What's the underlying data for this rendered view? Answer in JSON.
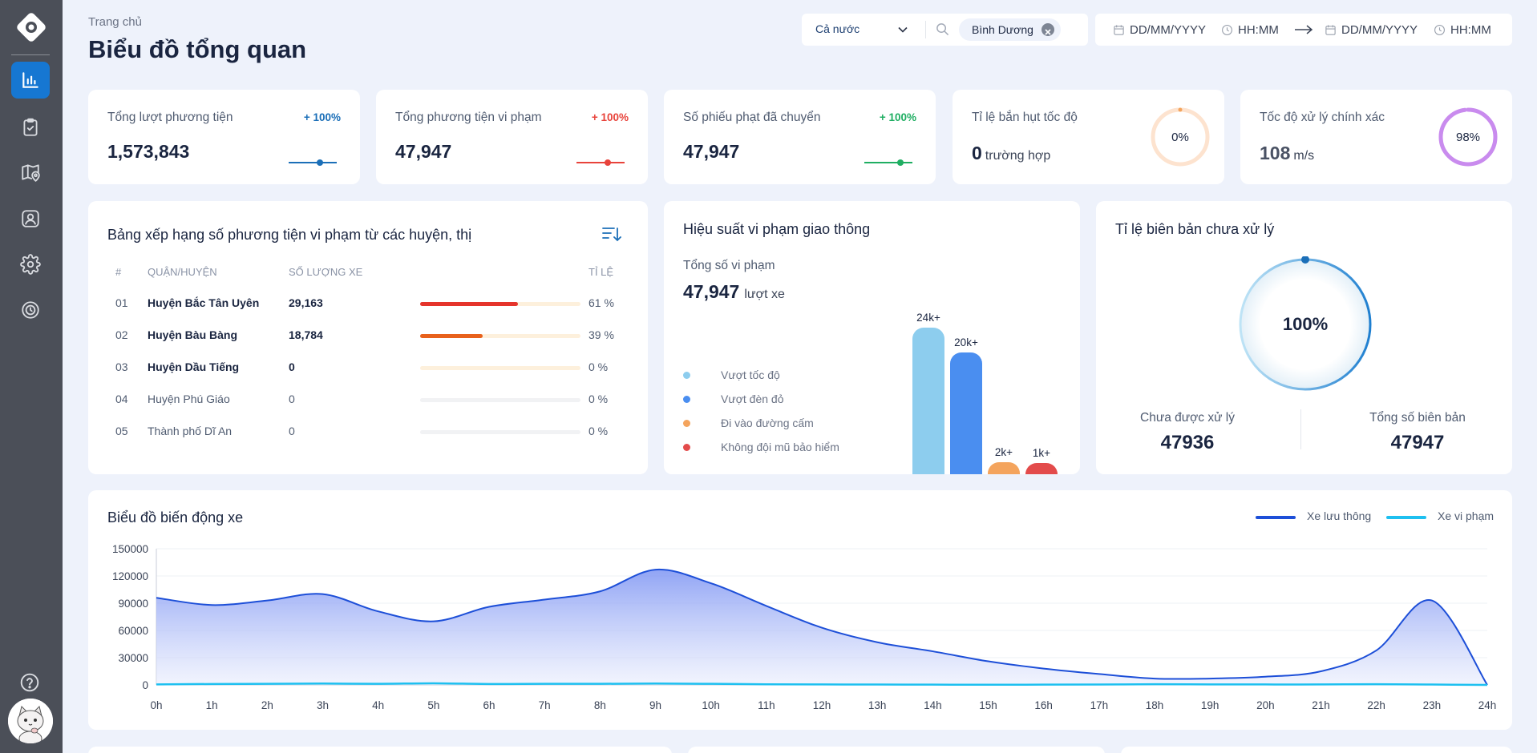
{
  "header": {
    "breadcrumb": "Trang chủ",
    "title": "Biểu đồ tổng quan",
    "region_select": "Cả nước",
    "selected_tag": "Bình Dương",
    "date_from": "DD/MM/YYYY",
    "time_from": "HH:MM",
    "date_to": "DD/MM/YYYY",
    "time_to": "HH:MM"
  },
  "sidebar": {
    "items": [
      {
        "icon": "bar-chart-icon",
        "active": true
      },
      {
        "icon": "clipboard-check-icon",
        "active": false
      },
      {
        "icon": "map-pin-icon",
        "active": false
      },
      {
        "icon": "user-group-icon",
        "active": false
      },
      {
        "icon": "gear-icon",
        "active": false
      },
      {
        "icon": "clock-history-icon",
        "active": false
      }
    ]
  },
  "stats": [
    {
      "label": "Tổng lượt phương tiện",
      "value": "1,573,843",
      "change": "+ 100%",
      "color": "#1b6fb8"
    },
    {
      "label": "Tổng phương tiện vi phạm",
      "value": "47,947",
      "change": "+ 100%",
      "color": "#e8433b"
    },
    {
      "label": "Số phiếu phạt đã chuyển",
      "value": "47,947",
      "change": "+ 100%",
      "color": "#1fae62"
    },
    {
      "label": "Tỉ lệ bắn hụt tốc độ",
      "value": "0",
      "unit": "trường hợp",
      "ring_text": "0%",
      "ring_color": "#fde3cf",
      "ring_fraction": 0
    },
    {
      "label": "Tốc độ xử lý chính xác",
      "value": "108",
      "unit": "m/s",
      "ring_text": "98%",
      "ring_color": "#c98bee",
      "ring_fraction": 0.98
    }
  ],
  "ranking": {
    "title": "Bảng xếp hạng số phương tiện vi phạm từ các huyện, thị",
    "headers": {
      "index": "#",
      "district": "QUẬN/HUYỆN",
      "count": "SỐ LƯỢNG XE",
      "ratio": "TỈ LỆ"
    },
    "rows": [
      {
        "index": "01",
        "district": "Huyện Bắc Tân Uyên",
        "count": "29,163",
        "ratio": "61 %",
        "fraction": 0.61,
        "color": "#e5342b",
        "bold": true
      },
      {
        "index": "02",
        "district": "Huyện Bàu Bàng",
        "count": "18,784",
        "ratio": "39 %",
        "fraction": 0.39,
        "color": "#e8611c",
        "bold": true
      },
      {
        "index": "03",
        "district": "Huyện Dầu Tiếng",
        "count": "0",
        "ratio": "0 %",
        "fraction": 0,
        "color": "#f2a64b",
        "bold": true
      },
      {
        "index": "04",
        "district": "Huyện Phú Giáo",
        "count": "0",
        "ratio": "0 %",
        "fraction": 0,
        "color": "#cccccc",
        "bold": false
      },
      {
        "index": "05",
        "district": "Thành phố Dĩ An",
        "count": "0",
        "ratio": "0 %",
        "fraction": 0,
        "color": "#cccccc",
        "bold": false
      }
    ]
  },
  "violation": {
    "title": "Hiệu suất vi phạm giao thông",
    "total_label": "Tổng số vi phạm",
    "total_value": "47,947",
    "total_unit": "lượt xe",
    "categories": [
      {
        "name": "Vượt tốc độ",
        "color": "#8dcdee",
        "label": "24k+",
        "value": 24000
      },
      {
        "name": "Vượt đèn đỏ",
        "color": "#4a8ef0",
        "label": "20k+",
        "value": 20000
      },
      {
        "name": "Đi vào đường cấm",
        "color": "#f4a45d",
        "label": "2k+",
        "value": 2000
      },
      {
        "name": "Không đội mũ bảo hiểm",
        "color": "#e34b4b",
        "label": "1k+",
        "value": 1000
      }
    ]
  },
  "unprocessed": {
    "title": "Tỉ lệ biên bản chưa xử lý",
    "percent": "100%",
    "fraction": 1,
    "unprocessed_label": "Chưa được xử lý",
    "unprocessed_value": "47936",
    "total_label": "Tổng số biên bản",
    "total_value": "47947"
  },
  "chart_data": {
    "type": "area",
    "title": "Biểu đồ biến động xe",
    "x": [
      "0h",
      "1h",
      "2h",
      "3h",
      "4h",
      "5h",
      "6h",
      "7h",
      "8h",
      "9h",
      "10h",
      "11h",
      "12h",
      "13h",
      "14h",
      "15h",
      "16h",
      "17h",
      "18h",
      "19h",
      "20h",
      "21h",
      "22h",
      "23h",
      "24h"
    ],
    "ylim": [
      0,
      150000
    ],
    "yticks": [
      0,
      30000,
      60000,
      90000,
      120000,
      150000
    ],
    "grid": true,
    "legend_position": "top-right",
    "series": [
      {
        "name": "Xe lưu thông",
        "color": "#1d4fd8",
        "values": [
          96000,
          88000,
          93000,
          100000,
          81000,
          70000,
          86000,
          94000,
          103000,
          127000,
          112000,
          87000,
          63000,
          47000,
          37000,
          26000,
          18000,
          12000,
          7000,
          7000,
          9000,
          15000,
          38000,
          93000,
          0
        ]
      },
      {
        "name": "Xe vi phạm",
        "color": "#1ec0f0",
        "values": [
          500,
          1000,
          1200,
          1500,
          1200,
          1800,
          1000,
          1200,
          1200,
          1500,
          1200,
          700,
          500,
          400,
          300,
          200,
          300,
          400,
          800,
          600,
          500,
          500,
          800,
          400,
          0
        ]
      }
    ]
  }
}
